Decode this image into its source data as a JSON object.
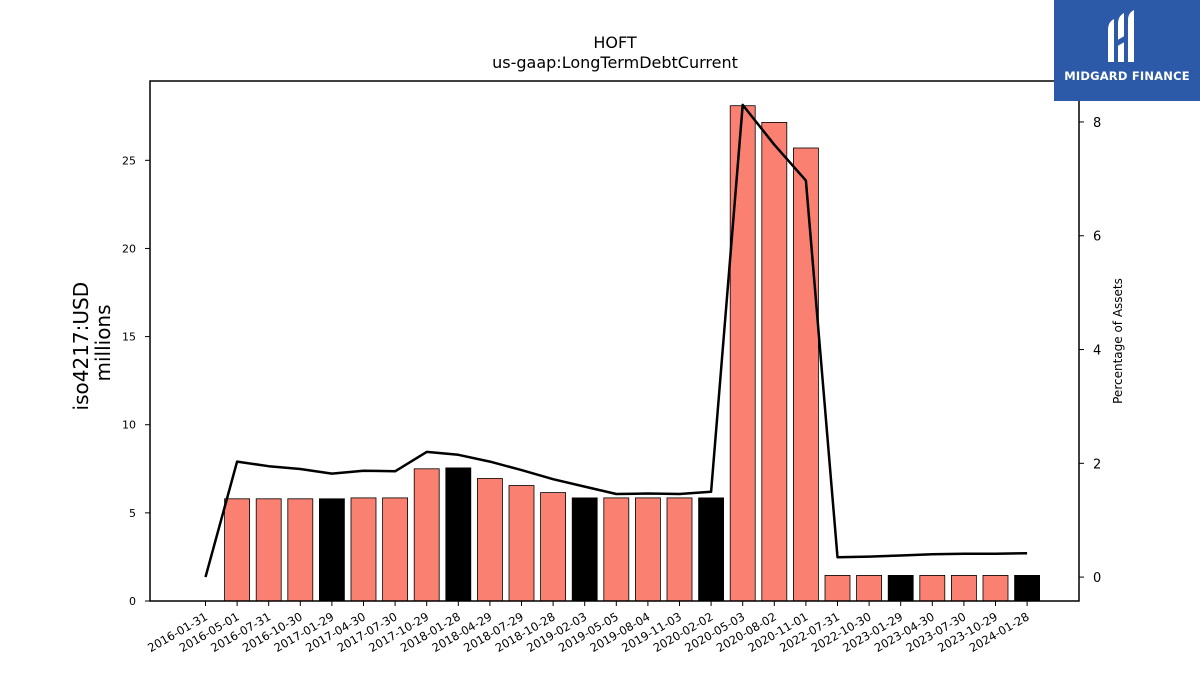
{
  "brand": {
    "name": "MIDGARD FINANCE",
    "bg_color": "#2c5aa8"
  },
  "chart_data": {
    "type": "bar",
    "title": "HOFT",
    "subtitle": "us-gaap:LongTermDebtCurrent",
    "ylabel_line1": "iso4217:USD",
    "ylabel_line2": "millions",
    "y2label": "Percentage of Assets",
    "ylim": [
      0,
      29.5
    ],
    "y2lim": [
      -0.42,
      8.72
    ],
    "yticks": [
      0,
      5,
      10,
      15,
      20,
      25
    ],
    "y2ticks": [
      0,
      2,
      4,
      6,
      8
    ],
    "grid": false,
    "bar_colors": {
      "default": "#fa8072",
      "highlight": "#000000"
    },
    "categories": [
      "2016-01-31",
      "2016-05-01",
      "2016-07-31",
      "2016-10-30",
      "2017-01-29",
      "2017-04-30",
      "2017-07-30",
      "2017-10-29",
      "2018-01-28",
      "2018-04-29",
      "2018-07-29",
      "2018-10-28",
      "2019-02-03",
      "2019-05-05",
      "2019-08-04",
      "2019-11-03",
      "2020-02-02",
      "2020-05-03",
      "2020-08-02",
      "2020-11-01",
      "2022-07-31",
      "2022-10-30",
      "2023-01-29",
      "2023-04-30",
      "2023-07-30",
      "2023-10-29",
      "2024-01-28"
    ],
    "series": [
      {
        "kind": "bar",
        "axis": "left",
        "values": [
          null,
          5.8,
          5.8,
          5.8,
          5.8,
          5.85,
          5.85,
          7.5,
          7.55,
          6.95,
          6.55,
          6.15,
          5.85,
          5.85,
          5.85,
          5.85,
          5.85,
          28.1,
          27.15,
          25.7,
          1.45,
          1.45,
          1.45,
          1.45,
          1.45,
          1.45,
          1.45
        ],
        "highlight": [
          false,
          false,
          false,
          false,
          true,
          false,
          false,
          false,
          true,
          false,
          false,
          false,
          true,
          false,
          false,
          false,
          true,
          false,
          false,
          false,
          false,
          false,
          true,
          false,
          false,
          false,
          true
        ]
      },
      {
        "kind": "line",
        "axis": "right",
        "color": "#000000",
        "values": [
          0.0,
          2.03,
          1.95,
          1.9,
          1.82,
          1.87,
          1.86,
          2.2,
          2.15,
          2.03,
          1.88,
          1.72,
          1.59,
          1.46,
          1.47,
          1.46,
          1.5,
          8.3,
          7.6,
          6.97,
          0.35,
          0.36,
          0.38,
          0.4,
          0.41,
          0.41,
          0.42
        ]
      }
    ]
  }
}
